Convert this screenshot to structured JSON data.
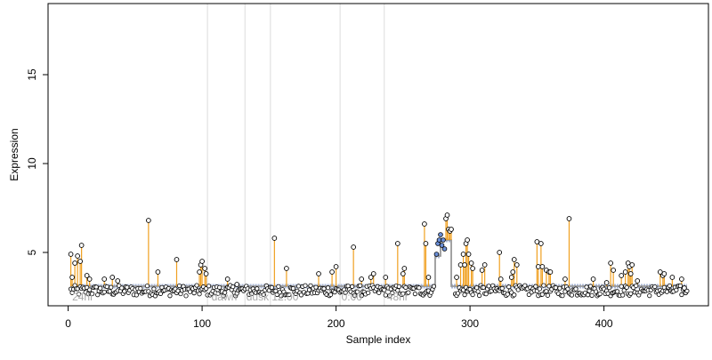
{
  "chart_data": {
    "type": "scatter",
    "xlabel": "Sample index",
    "ylabel": "Expression",
    "xlim": [
      -15,
      478
    ],
    "ylim": [
      2.0,
      19.0
    ],
    "x_ticks": [
      0,
      100,
      200,
      300,
      400
    ],
    "y_ticks": [
      5,
      10,
      15
    ],
    "grid": "vertical dividers only",
    "baseline": 3.1,
    "baseline_segments": [
      {
        "x_start": 2,
        "x_end": 274,
        "y": 3.1
      },
      {
        "x_start": 274,
        "x_end": 278,
        "y": 4.8
      },
      {
        "x_start": 278,
        "x_end": 286,
        "y": 5.7
      },
      {
        "x_start": 286,
        "x_end": 462,
        "y": 3.1
      }
    ],
    "segment_dividers": [
      104,
      132,
      151,
      203,
      236
    ],
    "segment_labels": [
      {
        "x": 3,
        "text": "24hr"
      },
      {
        "x": 107,
        "text": "dawn"
      },
      {
        "x": 133,
        "text": "dusk"
      },
      {
        "x": 152,
        "text": "12:00"
      },
      {
        "x": 204,
        "text": "0:00"
      },
      {
        "x": 238,
        "text": "48hr"
      }
    ],
    "outliers": [
      {
        "x": 2,
        "y": 4.9
      },
      {
        "x": 3,
        "y": 3.6
      },
      {
        "x": 5,
        "y": 4.4
      },
      {
        "x": 7,
        "y": 4.8
      },
      {
        "x": 9,
        "y": 4.5
      },
      {
        "x": 10,
        "y": 5.4
      },
      {
        "x": 14,
        "y": 3.7
      },
      {
        "x": 16,
        "y": 3.5
      },
      {
        "x": 27,
        "y": 3.5
      },
      {
        "x": 33,
        "y": 3.6
      },
      {
        "x": 37,
        "y": 3.4
      },
      {
        "x": 60,
        "y": 6.8
      },
      {
        "x": 67,
        "y": 3.9
      },
      {
        "x": 81,
        "y": 4.6
      },
      {
        "x": 98,
        "y": 3.9
      },
      {
        "x": 99,
        "y": 4.3
      },
      {
        "x": 100,
        "y": 4.5
      },
      {
        "x": 102,
        "y": 4.1
      },
      {
        "x": 103,
        "y": 3.8
      },
      {
        "x": 119,
        "y": 3.5
      },
      {
        "x": 126,
        "y": 3.2
      },
      {
        "x": 154,
        "y": 5.8
      },
      {
        "x": 163,
        "y": 4.1
      },
      {
        "x": 187,
        "y": 3.8
      },
      {
        "x": 197,
        "y": 3.9
      },
      {
        "x": 200,
        "y": 4.2
      },
      {
        "x": 213,
        "y": 5.3
      },
      {
        "x": 219,
        "y": 3.5
      },
      {
        "x": 226,
        "y": 3.6
      },
      {
        "x": 228,
        "y": 3.8
      },
      {
        "x": 237,
        "y": 3.6
      },
      {
        "x": 246,
        "y": 5.5
      },
      {
        "x": 250,
        "y": 3.8
      },
      {
        "x": 251,
        "y": 4.1
      },
      {
        "x": 266,
        "y": 6.6
      },
      {
        "x": 267,
        "y": 5.5
      },
      {
        "x": 269,
        "y": 3.6
      },
      {
        "x": 282,
        "y": 6.9
      },
      {
        "x": 283,
        "y": 7.1
      },
      {
        "x": 284,
        "y": 6.3
      },
      {
        "x": 285,
        "y": 6.2
      },
      {
        "x": 286,
        "y": 6.3
      },
      {
        "x": 290,
        "y": 3.6
      },
      {
        "x": 293,
        "y": 4.3
      },
      {
        "x": 295,
        "y": 4.9
      },
      {
        "x": 296,
        "y": 4.3
      },
      {
        "x": 297,
        "y": 5.5
      },
      {
        "x": 298,
        "y": 5.7
      },
      {
        "x": 299,
        "y": 4.9
      },
      {
        "x": 301,
        "y": 4.4
      },
      {
        "x": 302,
        "y": 4.1
      },
      {
        "x": 309,
        "y": 4.0
      },
      {
        "x": 311,
        "y": 4.3
      },
      {
        "x": 322,
        "y": 5.0
      },
      {
        "x": 323,
        "y": 3.5
      },
      {
        "x": 331,
        "y": 3.6
      },
      {
        "x": 332,
        "y": 3.9
      },
      {
        "x": 333,
        "y": 4.6
      },
      {
        "x": 335,
        "y": 4.3
      },
      {
        "x": 350,
        "y": 5.6
      },
      {
        "x": 351,
        "y": 4.2
      },
      {
        "x": 353,
        "y": 5.5
      },
      {
        "x": 354,
        "y": 4.2
      },
      {
        "x": 357,
        "y": 4.0
      },
      {
        "x": 359,
        "y": 3.9
      },
      {
        "x": 360,
        "y": 3.9
      },
      {
        "x": 371,
        "y": 3.5
      },
      {
        "x": 374,
        "y": 6.9
      },
      {
        "x": 392,
        "y": 3.5
      },
      {
        "x": 402,
        "y": 3.3
      },
      {
        "x": 405,
        "y": 4.4
      },
      {
        "x": 407,
        "y": 4.0
      },
      {
        "x": 413,
        "y": 3.7
      },
      {
        "x": 416,
        "y": 3.9
      },
      {
        "x": 418,
        "y": 4.4
      },
      {
        "x": 419,
        "y": 4.2
      },
      {
        "x": 420,
        "y": 3.8
      },
      {
        "x": 421,
        "y": 4.3
      },
      {
        "x": 425,
        "y": 3.4
      },
      {
        "x": 442,
        "y": 3.9
      },
      {
        "x": 444,
        "y": 3.7
      },
      {
        "x": 445,
        "y": 3.8
      },
      {
        "x": 451,
        "y": 3.6
      },
      {
        "x": 458,
        "y": 3.5
      },
      {
        "x": 460,
        "y": 3.0
      }
    ],
    "rising_points": [
      {
        "x": 275,
        "y": 4.9
      },
      {
        "x": 276,
        "y": 5.5
      },
      {
        "x": 277,
        "y": 5.7
      },
      {
        "x": 278,
        "y": 6.0
      },
      {
        "x": 279,
        "y": 5.4
      },
      {
        "x": 280,
        "y": 5.7
      },
      {
        "x": 281,
        "y": 5.2
      }
    ],
    "noise_band": {
      "x_start": 2,
      "x_end": 462,
      "y_low": 2.55,
      "y_high": 3.15,
      "exclude_from": 274,
      "exclude_to": 288
    }
  }
}
